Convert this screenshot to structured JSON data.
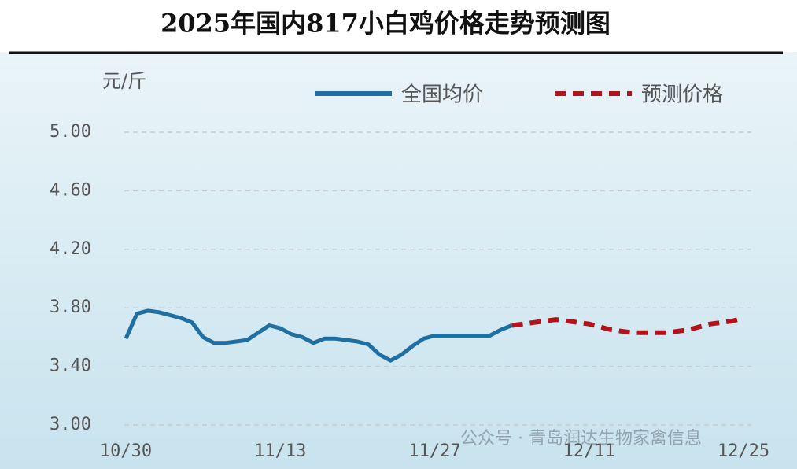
{
  "chart_data": {
    "type": "line",
    "title": "2025年国内817小白鸡价格走势预测图",
    "y_label": "元/斤",
    "watermark": "公众号 · 青岛润达生物家禽信息",
    "categories": [
      "10/30",
      null,
      null,
      null,
      null,
      null,
      null,
      null,
      null,
      null,
      null,
      null,
      null,
      null,
      "11/13",
      null,
      null,
      null,
      null,
      null,
      null,
      null,
      null,
      null,
      null,
      null,
      null,
      null,
      "11/27",
      null,
      null,
      null,
      null,
      null,
      null,
      null,
      null,
      null,
      null,
      null,
      null,
      null,
      "12/11",
      null,
      null,
      null,
      null,
      null,
      null,
      null,
      null,
      null,
      null,
      null,
      null,
      null,
      "12/25"
    ],
    "series": [
      {
        "name": "全国均价",
        "color": "#1f6fa3",
        "dashed": false,
        "values": [
          3.59,
          3.76,
          3.78,
          3.77,
          3.75,
          3.73,
          3.7,
          3.6,
          3.56,
          3.56,
          3.57,
          3.58,
          3.63,
          3.68,
          3.66,
          3.62,
          3.6,
          3.56,
          3.59,
          3.59,
          3.58,
          3.57,
          3.55,
          3.48,
          3.44,
          3.48,
          3.54,
          3.59,
          3.61,
          3.61,
          3.61,
          3.61,
          3.61,
          3.61,
          3.65,
          3.68,
          null,
          null,
          null,
          null,
          null,
          null,
          null,
          null,
          null,
          null,
          null,
          null,
          null,
          null,
          null,
          null,
          null,
          null,
          null,
          null,
          null
        ]
      },
      {
        "name": "预测价格",
        "color": "#b3141b",
        "dashed": true,
        "values": [
          null,
          null,
          null,
          null,
          null,
          null,
          null,
          null,
          null,
          null,
          null,
          null,
          null,
          null,
          null,
          null,
          null,
          null,
          null,
          null,
          null,
          null,
          null,
          null,
          null,
          null,
          null,
          null,
          null,
          null,
          null,
          null,
          null,
          null,
          null,
          3.68,
          3.69,
          3.7,
          3.71,
          3.72,
          3.71,
          3.7,
          3.69,
          3.67,
          3.65,
          3.64,
          3.63,
          3.63,
          3.63,
          3.63,
          3.64,
          3.65,
          3.67,
          3.69,
          3.7,
          3.71,
          3.73
        ]
      }
    ],
    "ylim": [
      3,
      5
    ],
    "yticks": [
      {
        "value": 3,
        "label": "3.00"
      },
      {
        "value": 3.4,
        "label": "3.40"
      },
      {
        "value": 3.8,
        "label": "3.80"
      },
      {
        "value": 4.2,
        "label": "4.20"
      },
      {
        "value": 4.6,
        "label": "4.60"
      },
      {
        "value": 5,
        "label": "5.00"
      }
    ],
    "grid": true
  }
}
